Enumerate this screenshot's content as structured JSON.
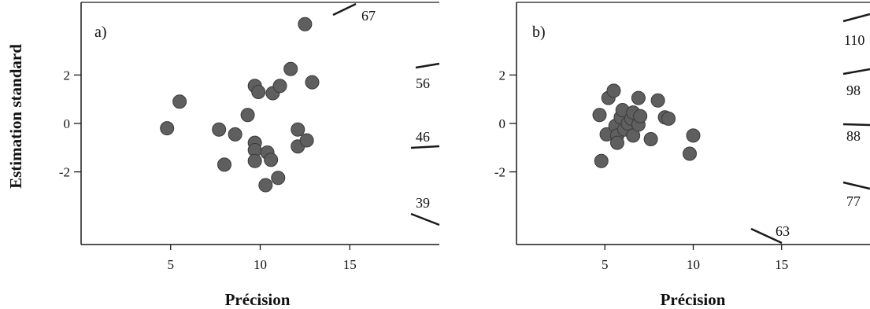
{
  "colors": {
    "point_fill": "#5f5f5f",
    "point_stroke": "#3a3a3a",
    "axis": "#1a1a1a",
    "background": "#ffffff"
  },
  "y_axis_title": "Estimation standard",
  "chart_data": [
    {
      "type": "scatter",
      "panel_label": "a)",
      "xlabel": "Précision",
      "ylabel": "Estimation standard",
      "xlim": [
        0,
        20
      ],
      "ylim": [
        -5,
        5
      ],
      "x_ticks": [
        5,
        10,
        15
      ],
      "y_ticks": [
        2,
        0,
        -2
      ],
      "x_tick_labels": [
        "5",
        "10",
        "15"
      ],
      "y_tick_labels": [
        "2",
        "0",
        "-2"
      ],
      "grid": false,
      "points": [
        {
          "x": 4.8,
          "y": -0.2
        },
        {
          "x": 5.5,
          "y": 0.9
        },
        {
          "x": 7.7,
          "y": -0.25
        },
        {
          "x": 8.0,
          "y": -1.7
        },
        {
          "x": 8.6,
          "y": -0.45
        },
        {
          "x": 9.3,
          "y": 0.35
        },
        {
          "x": 9.7,
          "y": -0.8
        },
        {
          "x": 9.7,
          "y": -1.1
        },
        {
          "x": 9.7,
          "y": -1.55
        },
        {
          "x": 9.7,
          "y": 1.55
        },
        {
          "x": 9.9,
          "y": 1.3
        },
        {
          "x": 10.3,
          "y": -2.55
        },
        {
          "x": 10.4,
          "y": -1.2
        },
        {
          "x": 10.6,
          "y": -1.5
        },
        {
          "x": 10.7,
          "y": 1.25
        },
        {
          "x": 11.1,
          "y": 1.55
        },
        {
          "x": 11.0,
          "y": -2.25
        },
        {
          "x": 11.7,
          "y": 2.25
        },
        {
          "x": 12.1,
          "y": -0.25
        },
        {
          "x": 12.1,
          "y": -0.95
        },
        {
          "x": 12.6,
          "y": -0.7
        },
        {
          "x": 12.5,
          "y": 4.1
        },
        {
          "x": 12.9,
          "y": 1.7
        }
      ],
      "radial_labels": [
        {
          "text": "67",
          "value": 67
        },
        {
          "text": "56",
          "value": 56
        },
        {
          "text": "46",
          "value": 46
        },
        {
          "text": "39",
          "value": 39
        }
      ]
    },
    {
      "type": "scatter",
      "panel_label": "b)",
      "xlabel": "Précision",
      "xlim": [
        0,
        20
      ],
      "ylim": [
        -5,
        5
      ],
      "x_ticks": [
        5,
        10,
        15
      ],
      "y_ticks": [
        2,
        0,
        -2
      ],
      "x_tick_labels": [
        "5",
        "10",
        "15"
      ],
      "y_tick_labels": [
        "2",
        "0",
        "-2"
      ],
      "grid": false,
      "points": [
        {
          "x": 4.7,
          "y": 0.35
        },
        {
          "x": 4.8,
          "y": -1.55
        },
        {
          "x": 5.1,
          "y": -0.45
        },
        {
          "x": 5.2,
          "y": 1.05
        },
        {
          "x": 5.5,
          "y": 1.35
        },
        {
          "x": 5.6,
          "y": -0.1
        },
        {
          "x": 5.7,
          "y": -0.5
        },
        {
          "x": 5.7,
          "y": -0.8
        },
        {
          "x": 5.9,
          "y": 0.25
        },
        {
          "x": 6.0,
          "y": 0.55
        },
        {
          "x": 6.1,
          "y": -0.25
        },
        {
          "x": 6.3,
          "y": 0.0
        },
        {
          "x": 6.5,
          "y": 0.2
        },
        {
          "x": 6.6,
          "y": 0.45
        },
        {
          "x": 6.6,
          "y": -0.5
        },
        {
          "x": 6.9,
          "y": -0.05
        },
        {
          "x": 6.9,
          "y": 1.05
        },
        {
          "x": 7.0,
          "y": 0.3
        },
        {
          "x": 7.6,
          "y": -0.65
        },
        {
          "x": 8.0,
          "y": 0.95
        },
        {
          "x": 8.4,
          "y": 0.25
        },
        {
          "x": 8.6,
          "y": 0.2
        },
        {
          "x": 9.8,
          "y": -1.25
        },
        {
          "x": 10.0,
          "y": -0.5
        }
      ],
      "radial_labels": [
        {
          "text": "110",
          "value": 110
        },
        {
          "text": "98",
          "value": 98
        },
        {
          "text": "88",
          "value": 88
        },
        {
          "text": "77",
          "value": 77
        },
        {
          "text": "63",
          "value": 63
        }
      ]
    }
  ]
}
